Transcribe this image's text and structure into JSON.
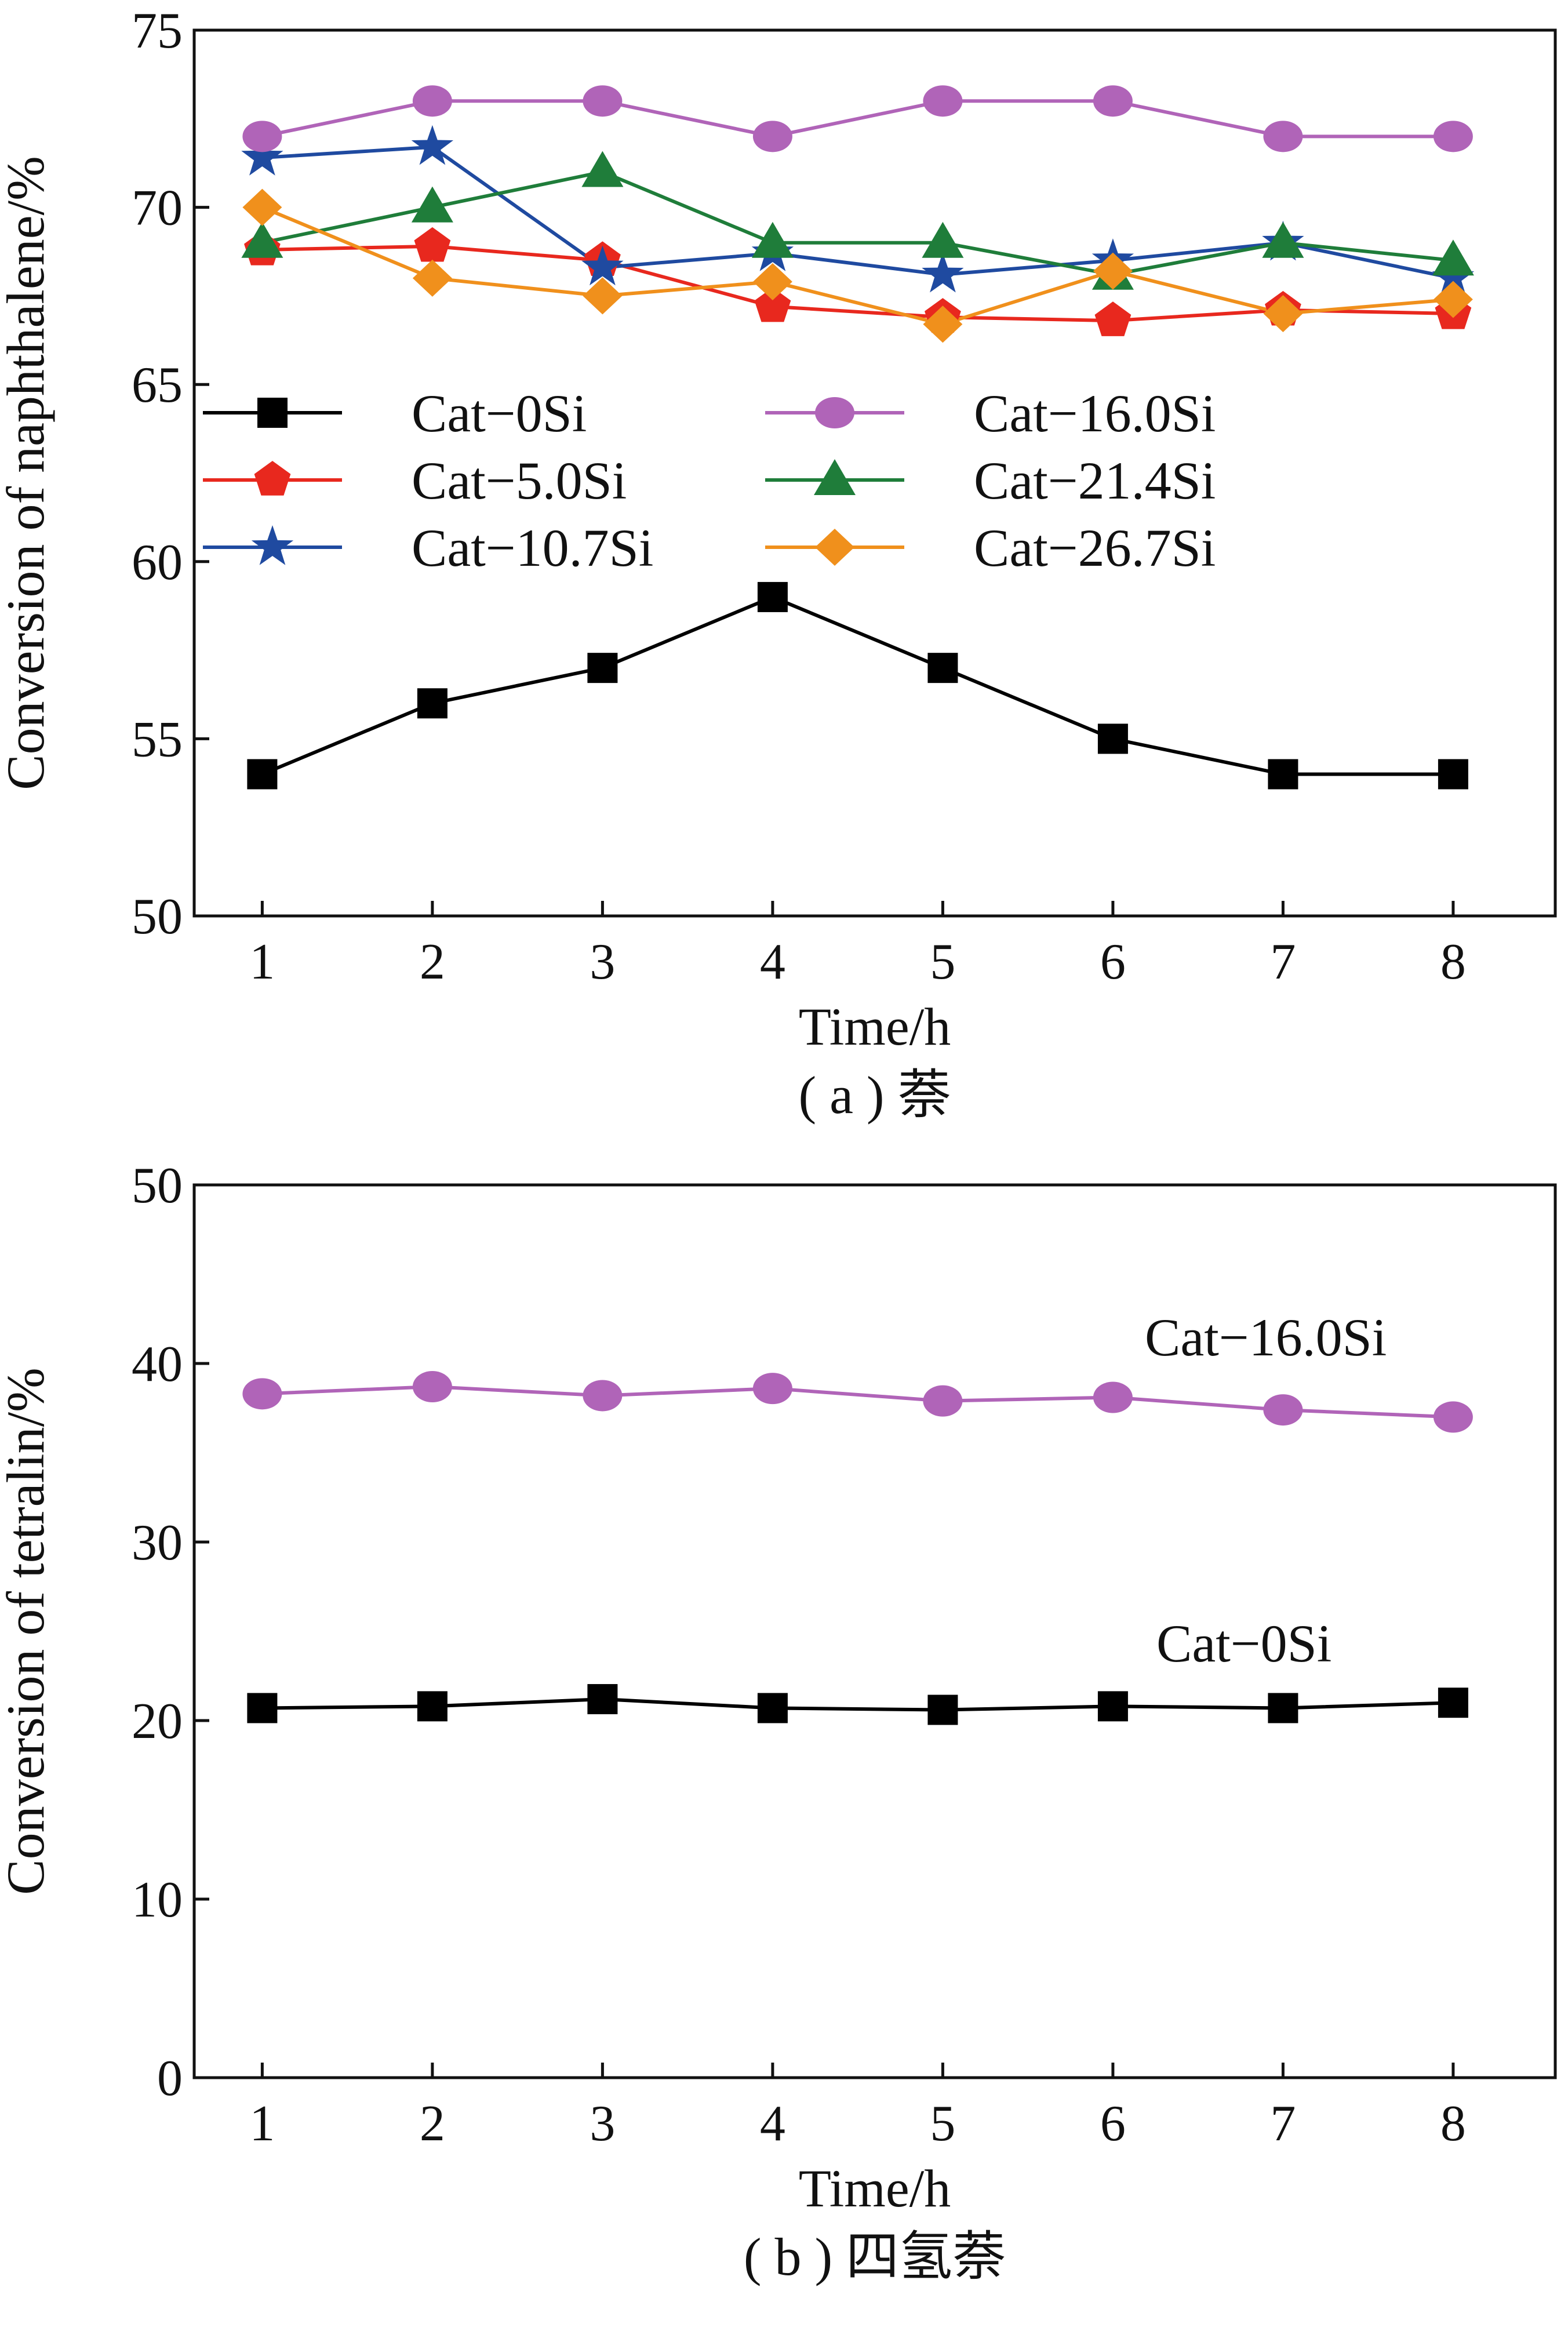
{
  "chart_data": [
    {
      "type": "line",
      "caption": "( a ) 萘",
      "xlabel": "Time/h",
      "ylabel": "Conversion of naphthalene/%",
      "x": [
        1,
        2,
        3,
        4,
        5,
        6,
        7,
        8
      ],
      "xticks": [
        "1",
        "2",
        "3",
        "4",
        "5",
        "6",
        "7",
        "8"
      ],
      "xlim": [
        0.6,
        8.6
      ],
      "ylim": [
        50,
        75
      ],
      "yticks": [
        "50",
        "55",
        "60",
        "65",
        "70",
        "75"
      ],
      "grid": false,
      "legend_position": "middle",
      "series": [
        {
          "name": "Cat−0Si",
          "marker": "square",
          "color": "#000000",
          "values": [
            54,
            56,
            57,
            59,
            57,
            55,
            54,
            54
          ]
        },
        {
          "name": "Cat−5.0Si",
          "marker": "pentagon",
          "color": "#e8281e",
          "values": [
            68.8,
            68.9,
            68.5,
            67.2,
            66.9,
            66.8,
            67.1,
            67.0
          ]
        },
        {
          "name": "Cat−10.7Si",
          "marker": "star",
          "color": "#1f4aa0",
          "values": [
            71.4,
            71.7,
            68.3,
            68.7,
            68.1,
            68.5,
            69.0,
            68.0
          ]
        },
        {
          "name": "Cat−16.0Si",
          "marker": "circle",
          "color": "#b064b8",
          "values": [
            72,
            73,
            73,
            72,
            73,
            73,
            72,
            72
          ]
        },
        {
          "name": "Cat−21.4Si",
          "marker": "triangle",
          "color": "#1f7d3a",
          "values": [
            69,
            70,
            71,
            69,
            69,
            68.1,
            69,
            68.5
          ]
        },
        {
          "name": "Cat−26.7Si",
          "marker": "diamond",
          "color": "#f0901c",
          "values": [
            70,
            68,
            67.5,
            67.9,
            66.7,
            68.2,
            67.0,
            67.4
          ]
        }
      ]
    },
    {
      "type": "line",
      "caption": "( b ) 四氢萘",
      "xlabel": "Time/h",
      "ylabel": "Conversion of tetralin/%",
      "x": [
        1,
        2,
        3,
        4,
        5,
        6,
        7,
        8
      ],
      "xticks": [
        "1",
        "2",
        "3",
        "4",
        "5",
        "6",
        "7",
        "8"
      ],
      "xlim": [
        0.6,
        8.6
      ],
      "ylim": [
        0,
        50
      ],
      "yticks": [
        "0",
        "10",
        "20",
        "30",
        "40",
        "50"
      ],
      "grid": false,
      "series": [
        {
          "name": "Cat−16.0Si",
          "marker": "circle",
          "color": "#b064b8",
          "values": [
            38.3,
            38.7,
            38.2,
            38.6,
            37.9,
            38.1,
            37.4,
            37.0
          ]
        },
        {
          "name": "Cat−0Si",
          "marker": "square",
          "color": "#000000",
          "values": [
            20.7,
            20.8,
            21.2,
            20.7,
            20.6,
            20.8,
            20.7,
            21.0
          ]
        }
      ]
    }
  ]
}
